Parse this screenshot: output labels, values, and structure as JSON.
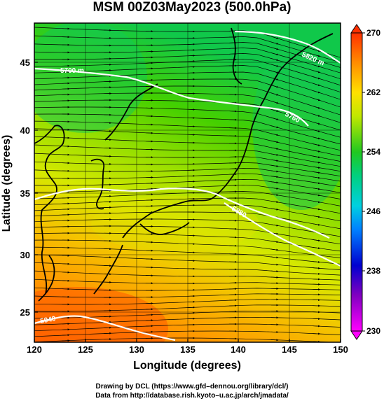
{
  "title": "MSM 00Z03May2023 (500.0hPa)",
  "x_axis": {
    "label": "Longitude (degrees)",
    "ticks": [
      "120",
      "125",
      "130",
      "135",
      "140",
      "145",
      "150"
    ],
    "range": [
      120,
      150
    ]
  },
  "y_axis": {
    "label": "Latitude  (degrees)",
    "ticks": [
      "25",
      "30",
      "35",
      "40",
      "45"
    ],
    "range": [
      22.4,
      47.6
    ]
  },
  "colorbar": {
    "min": 230,
    "max": 270,
    "ticks": [
      "230",
      "238",
      "246",
      "254",
      "262",
      "270"
    ]
  },
  "contours": [
    {
      "label": "5700 m"
    },
    {
      "label": "5760"
    },
    {
      "label": "5820 m"
    },
    {
      "label": "5880"
    },
    {
      "label": "5940"
    }
  ],
  "credits": {
    "line1": "Drawing by DCL (https://www.gfd–dennou.org/library/dcl/)",
    "line2": "Data from http://database.rish.kyoto–u.ac.jp/arch/jmadata/"
  },
  "colors": {
    "cold": "#00c840",
    "mid": "#d8e800",
    "warm": "#ff8a00",
    "hot": "#ff5a00"
  }
}
